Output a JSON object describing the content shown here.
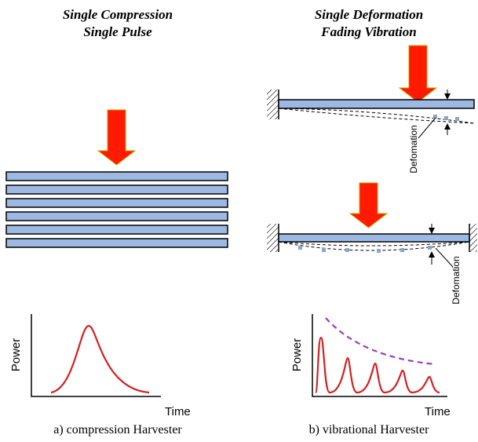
{
  "left": {
    "title": [
      "Single Compression",
      "Single Pulse"
    ],
    "graph": {
      "y_label": "Power",
      "x_label": "Time"
    },
    "caption": "a) compression Harvester"
  },
  "right": {
    "title": [
      "Single Deformation",
      "Fading Vibration"
    ],
    "cantilever": {
      "label": "Defomation"
    },
    "fixed_beam": {
      "label": "Defomation"
    },
    "graph": {
      "y_label": "Power",
      "x_label": "Time"
    },
    "caption": "b) vibrational Harvester"
  }
}
